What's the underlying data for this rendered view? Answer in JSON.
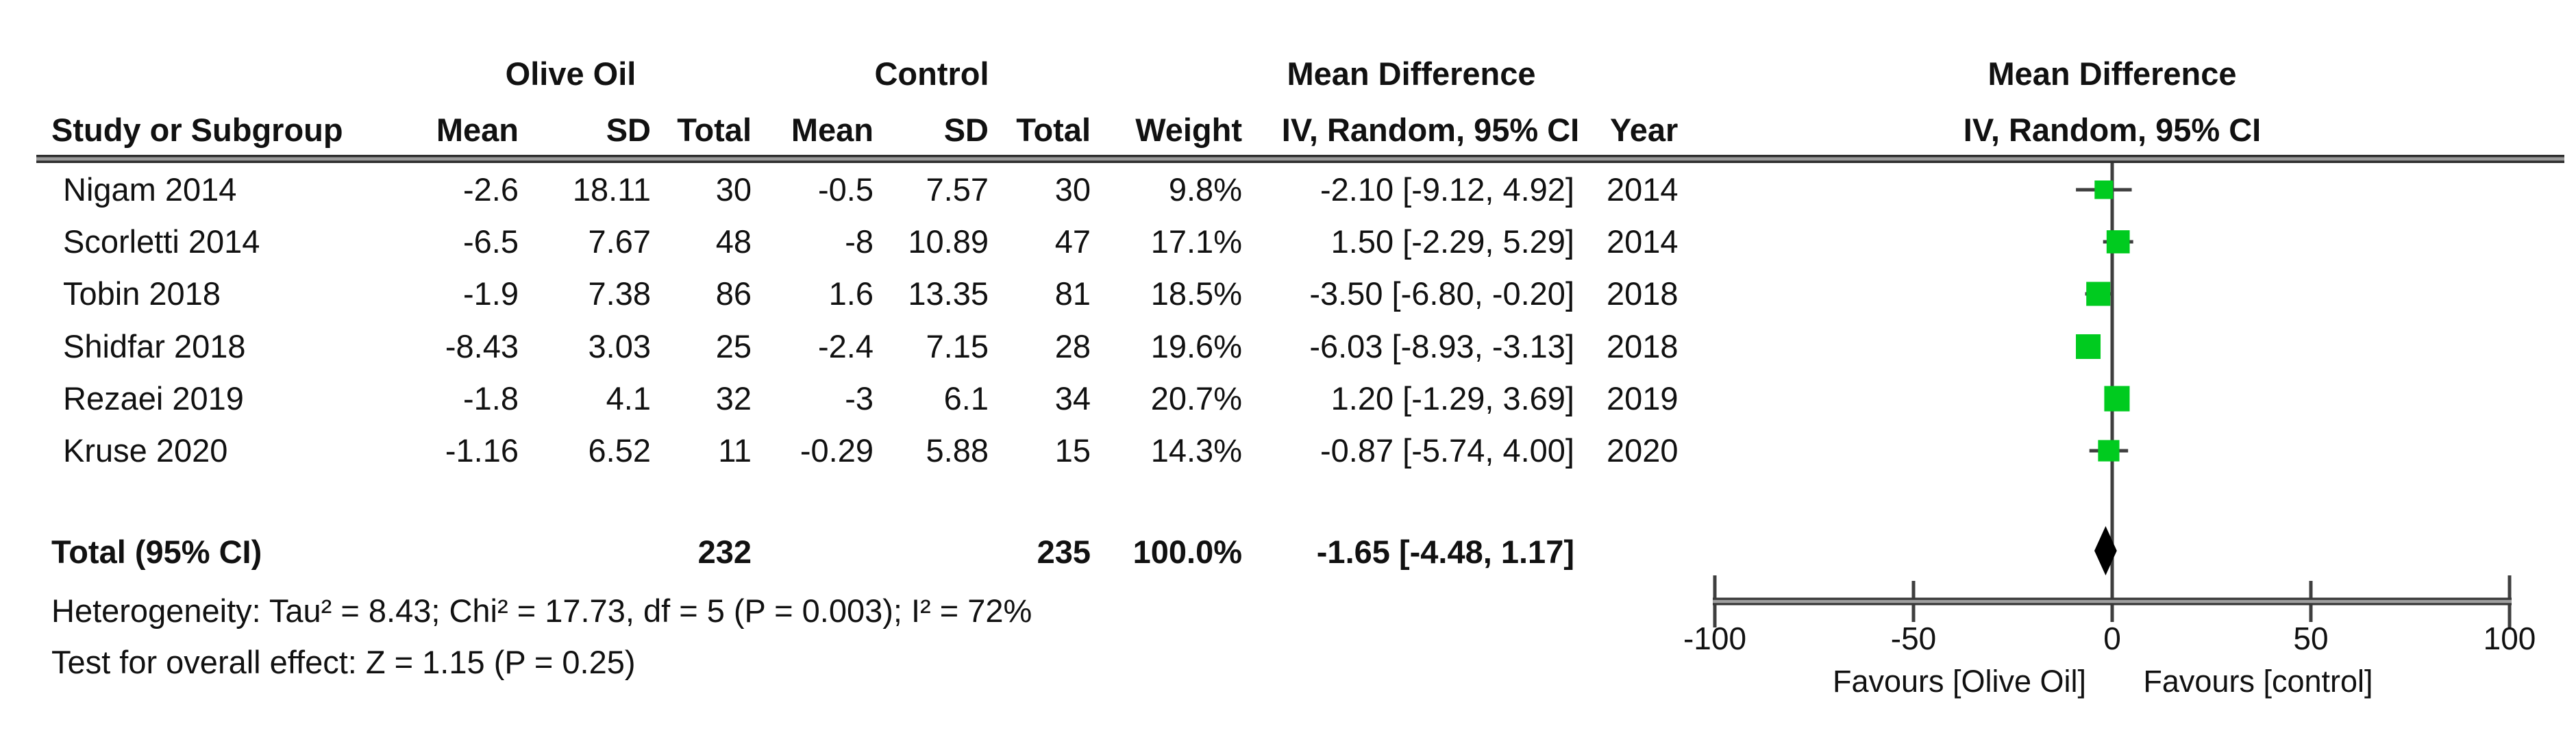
{
  "table": {
    "group_headers": {
      "olive": "Olive Oil",
      "control": "Control",
      "md": "Mean Difference",
      "plot_md": "Mean Difference"
    },
    "col_headers": {
      "study": "Study or Subgroup",
      "mean": "Mean",
      "sd": "SD",
      "total": "Total",
      "weight": "Weight",
      "ci": "IV, Random, 95% CI",
      "year": "Year",
      "plot_ci": "IV, Random, 95% CI"
    },
    "rows": [
      {
        "study": "Nigam 2014",
        "o_mean": "-2.6",
        "o_sd": "18.11",
        "o_total": "30",
        "c_mean": "-0.5",
        "c_sd": "7.57",
        "c_total": "30",
        "weight": "9.8%",
        "ci": "-2.10 [-9.12, 4.92]",
        "year": "2014"
      },
      {
        "study": "Scorletti 2014",
        "o_mean": "-6.5",
        "o_sd": "7.67",
        "o_total": "48",
        "c_mean": "-8",
        "c_sd": "10.89",
        "c_total": "47",
        "weight": "17.1%",
        "ci": "1.50 [-2.29, 5.29]",
        "year": "2014"
      },
      {
        "study": "Tobin 2018",
        "o_mean": "-1.9",
        "o_sd": "7.38",
        "o_total": "86",
        "c_mean": "1.6",
        "c_sd": "13.35",
        "c_total": "81",
        "weight": "18.5%",
        "ci": "-3.50 [-6.80, -0.20]",
        "year": "2018"
      },
      {
        "study": "Shidfar 2018",
        "o_mean": "-8.43",
        "o_sd": "3.03",
        "o_total": "25",
        "c_mean": "-2.4",
        "c_sd": "7.15",
        "c_total": "28",
        "weight": "19.6%",
        "ci": "-6.03 [-8.93, -3.13]",
        "year": "2018"
      },
      {
        "study": "Rezaei 2019",
        "o_mean": "-1.8",
        "o_sd": "4.1",
        "o_total": "32",
        "c_mean": "-3",
        "c_sd": "6.1",
        "c_total": "34",
        "weight": "20.7%",
        "ci": "1.20 [-1.29, 3.69]",
        "year": "2019"
      },
      {
        "study": "Kruse 2020",
        "o_mean": "-1.16",
        "o_sd": "6.52",
        "o_total": "11",
        "c_mean": "-0.29",
        "c_sd": "5.88",
        "c_total": "15",
        "weight": "14.3%",
        "ci": "-0.87 [-5.74, 4.00]",
        "year": "2020"
      }
    ],
    "total_row": {
      "label": "Total (95% CI)",
      "o_total": "232",
      "c_total": "235",
      "weight": "100.0%",
      "ci": "-1.65 [-4.48, 1.17]"
    },
    "heterogeneity": "Heterogeneity: Tau² = 8.43; Chi² = 17.73, df = 5 (P = 0.003); I² = 72%",
    "overall_effect": "Test for overall effect: Z = 1.15 (P = 0.25)"
  },
  "chart_data": {
    "type": "forest",
    "effect_measure": "Mean Difference, IV, Random, 95% CI",
    "axis": {
      "min": -100,
      "max": 100,
      "ticks": [
        -100,
        -50,
        0,
        50,
        100
      ],
      "tick_labels": [
        "-100",
        "-50",
        "0",
        "50",
        "100"
      ]
    },
    "favours_left": "Favours [Olive Oil]",
    "favours_right": "Favours [control]",
    "studies": [
      {
        "name": "Nigam 2014",
        "md": -2.1,
        "lo": -9.12,
        "hi": 4.92,
        "weight": 9.8,
        "year": "2014"
      },
      {
        "name": "Scorletti 2014",
        "md": 1.5,
        "lo": -2.29,
        "hi": 5.29,
        "weight": 17.1,
        "year": "2014"
      },
      {
        "name": "Tobin 2018",
        "md": -3.5,
        "lo": -6.8,
        "hi": -0.2,
        "weight": 18.5,
        "year": "2018"
      },
      {
        "name": "Shidfar 2018",
        "md": -6.03,
        "lo": -8.93,
        "hi": -3.13,
        "weight": 19.6,
        "year": "2018"
      },
      {
        "name": "Rezaei 2019",
        "md": 1.2,
        "lo": -1.29,
        "hi": 3.69,
        "weight": 20.7,
        "year": "2019"
      },
      {
        "name": "Kruse 2020",
        "md": -0.87,
        "lo": -5.74,
        "hi": 4.0,
        "weight": 14.3,
        "year": "2020"
      }
    ],
    "total": {
      "md": -1.65,
      "lo": -4.48,
      "hi": 1.17
    },
    "marker_color": "#00cb1f",
    "diamond_color": "#000000",
    "line_color": "#3f3f3f"
  }
}
